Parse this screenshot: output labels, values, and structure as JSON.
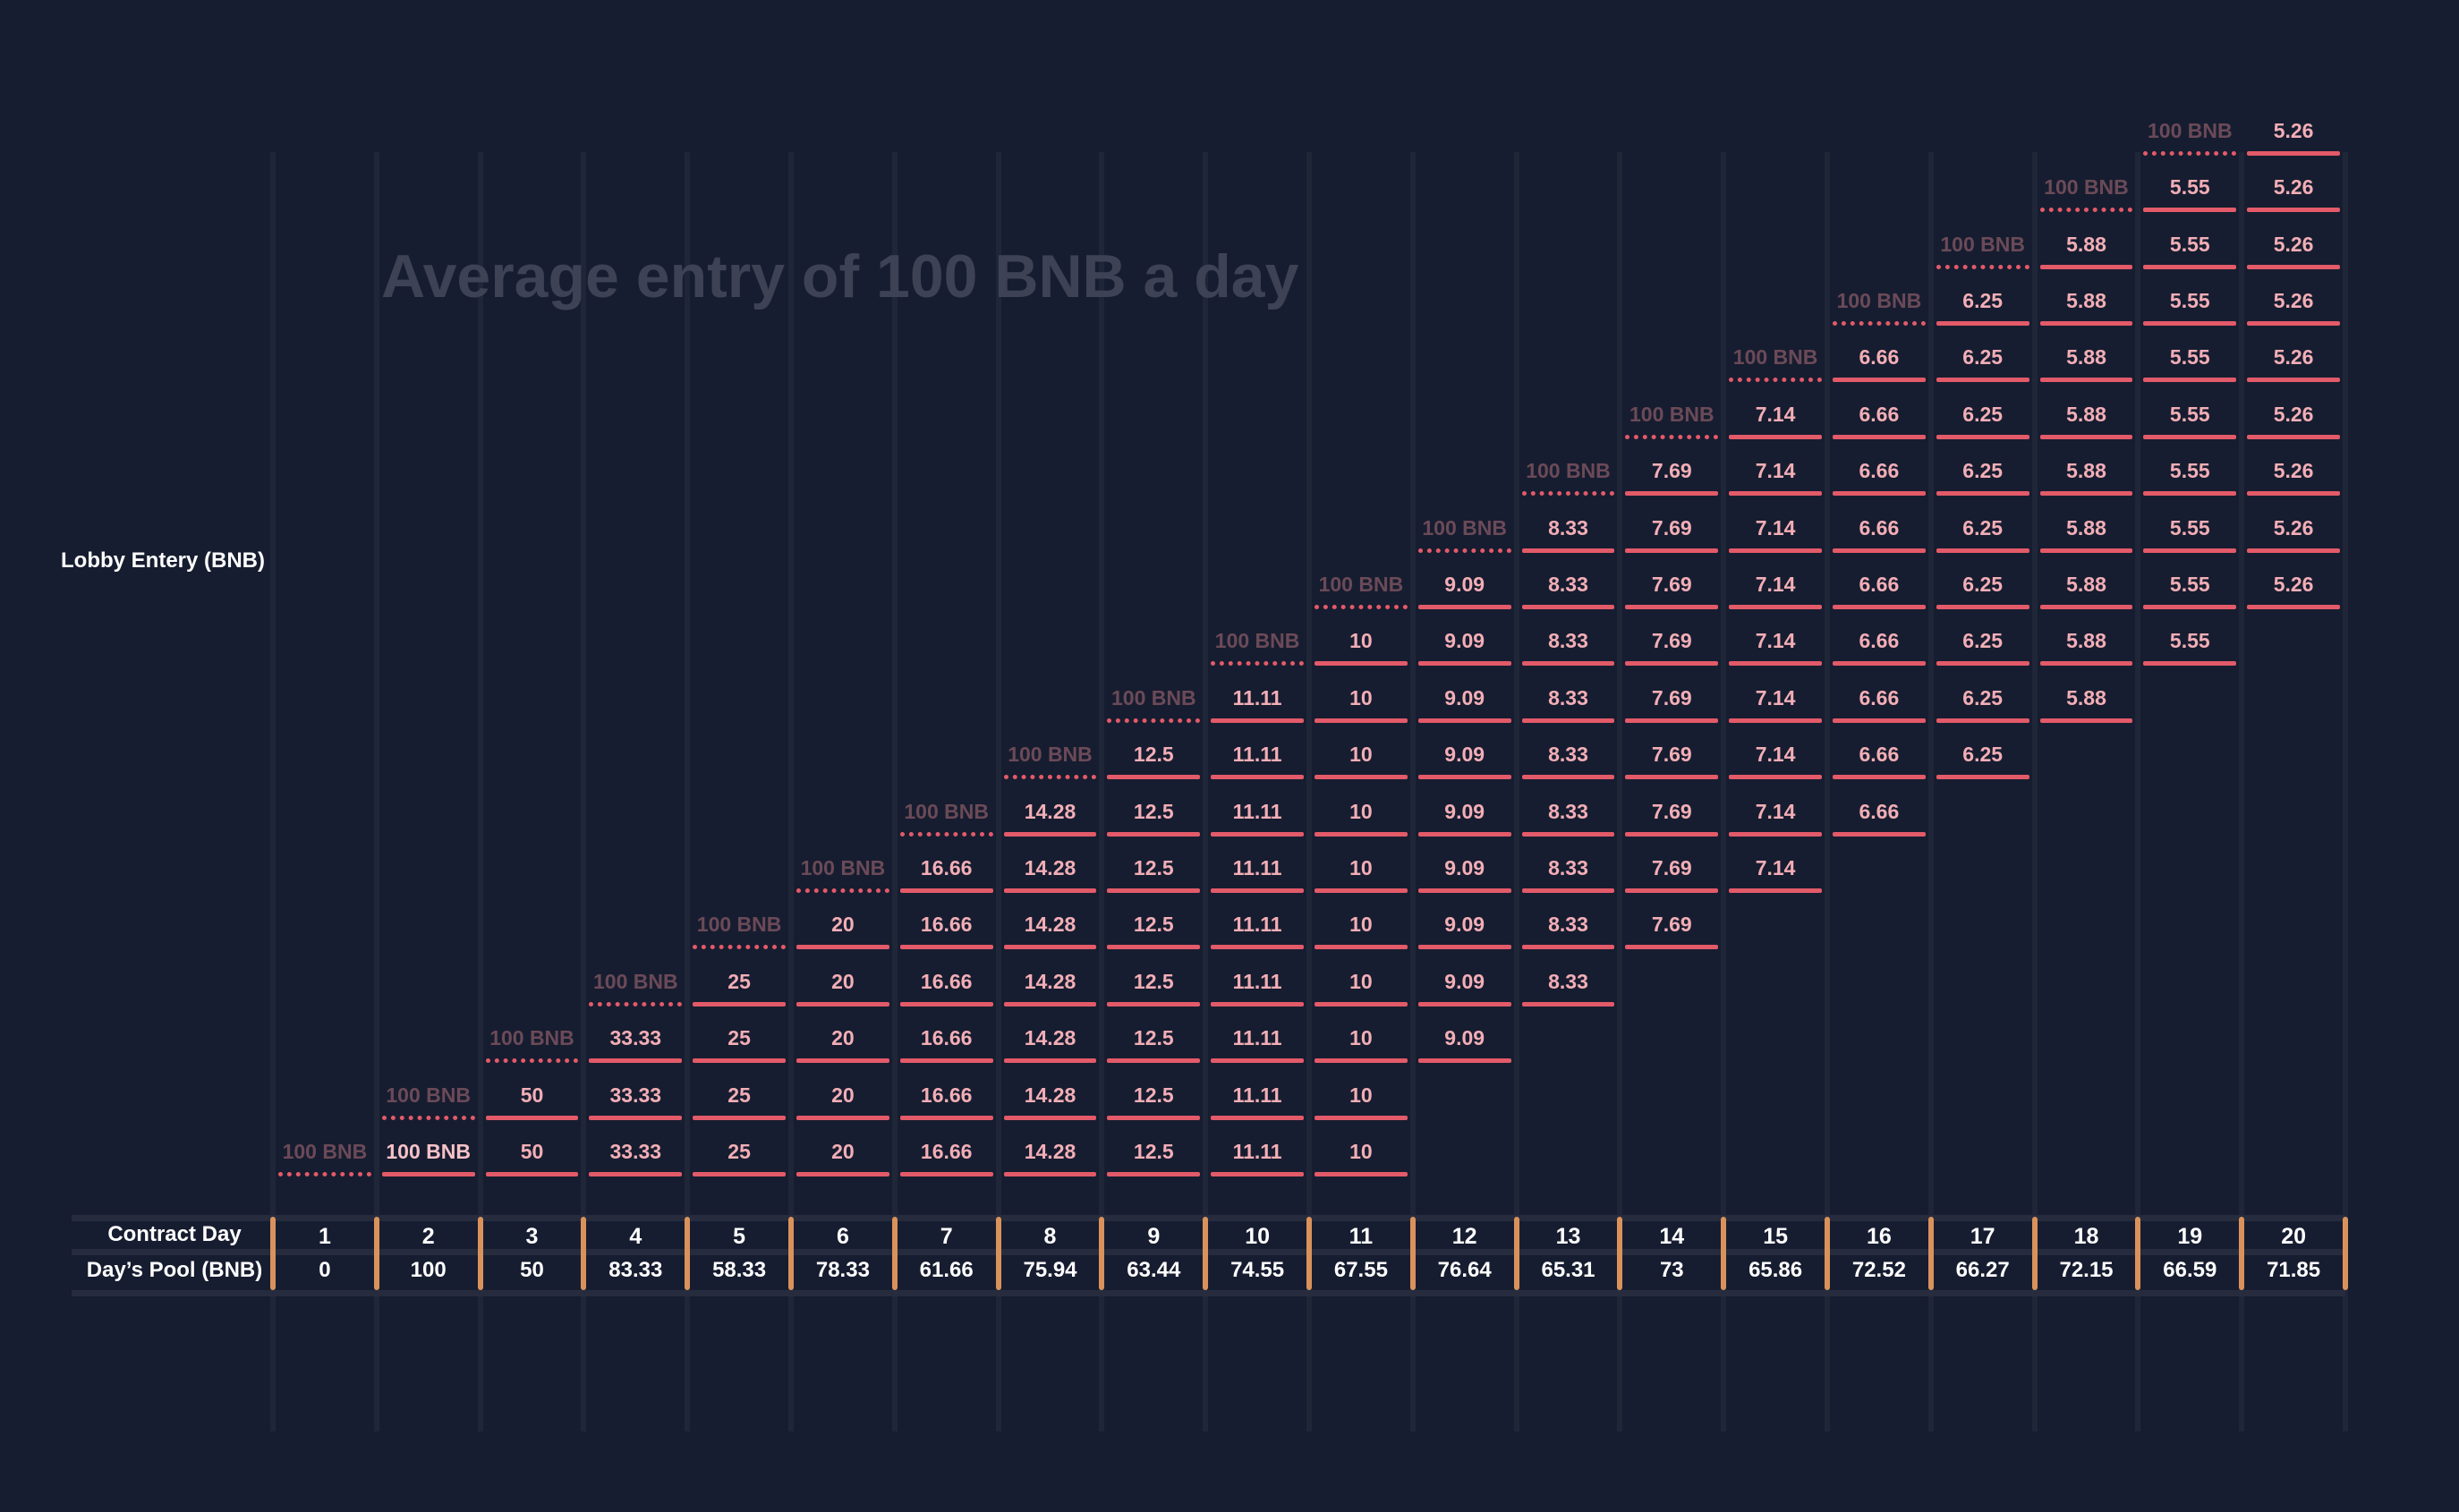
{
  "title": "Average entry of 100 BNB a day",
  "y_label": "Lobby Entery (BNB)",
  "rows": {
    "contract_day_label": "Contract Day",
    "pool_label": "Day’s Pool (BNB)"
  },
  "entry_label": "100 BNB",
  "colors": {
    "background": "#171d30",
    "segment": "#e35a69",
    "tick": "#d9925c",
    "title": "#3d4354",
    "entry_label": "#6b4a58"
  },
  "chart_data": {
    "type": "table",
    "days": [
      1,
      2,
      3,
      4,
      5,
      6,
      7,
      8,
      9,
      10,
      11,
      12,
      13,
      14,
      15,
      16,
      17,
      18,
      19,
      20
    ],
    "day_labels": [
      "1",
      "2",
      "3",
      "4",
      "5",
      "6",
      "7",
      "8",
      "9",
      "10",
      "11",
      "12",
      "13",
      "14",
      "15",
      "16",
      "17",
      "18",
      "19",
      "20"
    ],
    "day_pool": [
      "0",
      "100",
      "50",
      "83.33",
      "58.33",
      "78.33",
      "61.66",
      "75.94",
      "63.44",
      "74.55",
      "67.55",
      "76.64",
      "65.31",
      "73",
      "65.86",
      "72.52",
      "66.27",
      "72.15",
      "66.59",
      "71.85"
    ],
    "entries": [
      {
        "entry_day": 1,
        "values": [
          "100 BNB",
          "50",
          "33.33",
          "25",
          "20",
          "16.66",
          "14.28",
          "12.5",
          "11.11",
          "10"
        ]
      },
      {
        "entry_day": 2,
        "values": [
          "50",
          "33.33",
          "25",
          "20",
          "16.66",
          "14.28",
          "12.5",
          "11.11",
          "10"
        ]
      },
      {
        "entry_day": 3,
        "values": [
          "33.33",
          "25",
          "20",
          "16.66",
          "14.28",
          "12.5",
          "11.11",
          "10",
          "9.09"
        ]
      },
      {
        "entry_day": 4,
        "values": [
          "25",
          "20",
          "16.66",
          "14.28",
          "12.5",
          "11.11",
          "10",
          "9.09",
          "8.33"
        ]
      },
      {
        "entry_day": 5,
        "values": [
          "20",
          "16.66",
          "14.28",
          "12.5",
          "11.11",
          "10",
          "9.09",
          "8.33",
          "7.69"
        ]
      },
      {
        "entry_day": 6,
        "values": [
          "16.66",
          "14.28",
          "12.5",
          "11.11",
          "10",
          "9.09",
          "8.33",
          "7.69",
          "7.14"
        ]
      },
      {
        "entry_day": 7,
        "values": [
          "14.28",
          "12.5",
          "11.11",
          "10",
          "9.09",
          "8.33",
          "7.69",
          "7.14",
          "6.66"
        ]
      },
      {
        "entry_day": 8,
        "values": [
          "12.5",
          "11.11",
          "10",
          "9.09",
          "8.33",
          "7.69",
          "7.14",
          "6.66",
          "6.25"
        ]
      },
      {
        "entry_day": 9,
        "values": [
          "11.11",
          "10",
          "9.09",
          "8.33",
          "7.69",
          "7.14",
          "6.66",
          "6.25",
          "5.88"
        ]
      },
      {
        "entry_day": 10,
        "values": [
          "10",
          "9.09",
          "8.33",
          "7.69",
          "7.14",
          "6.66",
          "6.25",
          "5.88",
          "5.55"
        ]
      },
      {
        "entry_day": 11,
        "values": [
          "9.09",
          "8.33",
          "7.69",
          "7.14",
          "6.66",
          "6.25",
          "5.88",
          "5.55",
          "5.26"
        ]
      },
      {
        "entry_day": 12,
        "values": [
          "8.33",
          "7.69",
          "7.14",
          "6.66",
          "6.25",
          "5.88",
          "5.55",
          "5.26"
        ]
      },
      {
        "entry_day": 13,
        "values": [
          "7.69",
          "7.14",
          "6.66",
          "6.25",
          "5.88",
          "5.55",
          "5.26"
        ]
      },
      {
        "entry_day": 14,
        "values": [
          "7.14",
          "6.66",
          "6.25",
          "5.88",
          "5.55",
          "5.26"
        ]
      },
      {
        "entry_day": 15,
        "values": [
          "6.66",
          "6.25",
          "5.88",
          "5.55",
          "5.26"
        ]
      },
      {
        "entry_day": 16,
        "values": [
          "6.25",
          "5.88",
          "5.55",
          "5.26"
        ]
      },
      {
        "entry_day": 17,
        "values": [
          "5.88",
          "5.55",
          "5.26"
        ]
      },
      {
        "entry_day": 18,
        "values": [
          "5.55",
          "5.26"
        ]
      },
      {
        "entry_day": 19,
        "values": [
          "5.26"
        ]
      }
    ]
  }
}
